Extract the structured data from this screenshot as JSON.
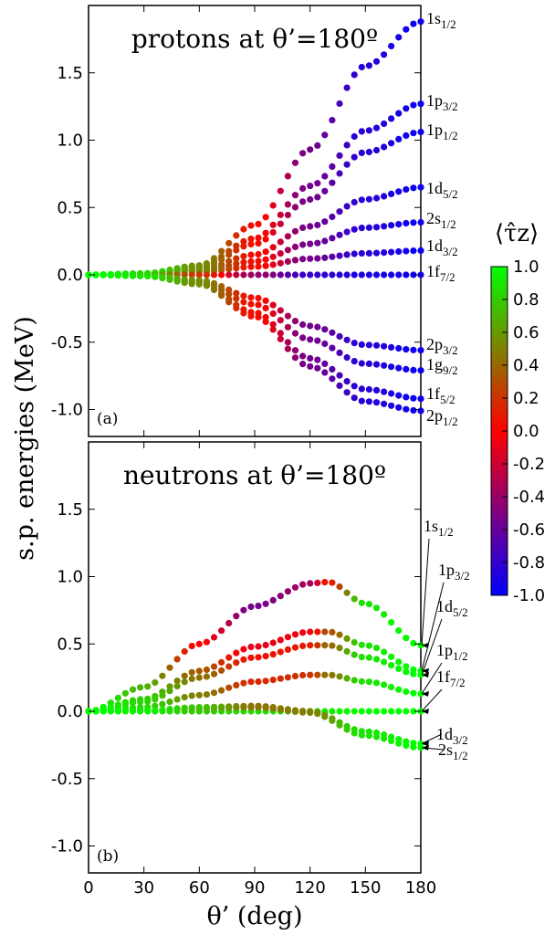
{
  "chart_data": [
    {
      "type": "scatter",
      "panel_label": "(a)",
      "title": "protons at θ’=180º",
      "ylabel": "s.p. energies (MeV)",
      "xlim": [
        0,
        180
      ],
      "ylim": [
        -1.2,
        2.0
      ],
      "yticks": [
        "1.5",
        "1.0",
        "0.5",
        "0.0",
        "-0.5",
        "-1.0"
      ],
      "grid": false,
      "series": [
        {
          "name": "1s1/2",
          "x": [
            0,
            30,
            60,
            90,
            120,
            150,
            180
          ],
          "y": [
            0,
            0.01,
            0.07,
            0.37,
            0.93,
            1.55,
            1.88
          ],
          "tau_z": [
            1.0,
            0.9,
            0.55,
            0.05,
            -0.55,
            -0.85,
            -0.95
          ]
        },
        {
          "name": "1p3/2",
          "x": [
            0,
            30,
            60,
            90,
            120,
            150,
            180
          ],
          "y": [
            0,
            0.01,
            0.06,
            0.27,
            0.66,
            1.07,
            1.27
          ],
          "tau_z": [
            1.0,
            0.9,
            0.55,
            0.05,
            -0.55,
            -0.85,
            -0.95
          ]
        },
        {
          "name": "1p1/2",
          "x": [
            0,
            30,
            60,
            90,
            120,
            150,
            180
          ],
          "y": [
            0,
            0.01,
            0.05,
            0.23,
            0.56,
            0.91,
            1.06
          ],
          "tau_z": [
            1.0,
            0.9,
            0.55,
            0.05,
            -0.55,
            -0.85,
            -0.95
          ]
        },
        {
          "name": "1d5/2",
          "x": [
            0,
            30,
            60,
            90,
            120,
            150,
            180
          ],
          "y": [
            0,
            0.01,
            0.04,
            0.15,
            0.36,
            0.56,
            0.65
          ],
          "tau_z": [
            1.0,
            0.9,
            0.55,
            0.05,
            -0.55,
            -0.85,
            -0.95
          ]
        },
        {
          "name": "2s1/2",
          "x": [
            0,
            30,
            60,
            90,
            120,
            150,
            180
          ],
          "y": [
            0,
            0.005,
            0.03,
            0.1,
            0.23,
            0.35,
            0.39
          ],
          "tau_z": [
            1.0,
            0.9,
            0.55,
            0.05,
            -0.55,
            -0.85,
            -0.95
          ]
        },
        {
          "name": "1d3/2",
          "x": [
            0,
            30,
            60,
            90,
            120,
            150,
            180
          ],
          "y": [
            0,
            0.004,
            0.02,
            0.06,
            0.12,
            0.16,
            0.18
          ],
          "tau_z": [
            1.0,
            0.9,
            0.55,
            0.05,
            -0.55,
            -0.85,
            -0.95
          ]
        },
        {
          "name": "1f7/2",
          "x": [
            0,
            30,
            60,
            90,
            120,
            150,
            180
          ],
          "y": [
            0,
            0,
            0,
            0,
            0,
            0,
            0
          ],
          "tau_z": [
            1.0,
            0.7,
            0.2,
            -0.4,
            -0.8,
            -0.9,
            -0.95
          ]
        },
        {
          "name": "2p3/2",
          "x": [
            0,
            30,
            60,
            90,
            120,
            150,
            180
          ],
          "y": [
            0,
            -0.005,
            -0.04,
            -0.17,
            -0.38,
            -0.52,
            -0.56
          ],
          "tau_z": [
            1.0,
            0.9,
            0.55,
            0.05,
            -0.55,
            -0.85,
            -0.95
          ]
        },
        {
          "name": "1g9/2",
          "x": [
            0,
            30,
            60,
            90,
            120,
            150,
            180
          ],
          "y": [
            0,
            -0.006,
            -0.05,
            -0.22,
            -0.48,
            -0.66,
            -0.71
          ],
          "tau_z": [
            1.0,
            0.9,
            0.55,
            0.05,
            -0.55,
            -0.85,
            -0.95
          ]
        },
        {
          "name": "1f5/2",
          "x": [
            0,
            30,
            60,
            90,
            120,
            150,
            180
          ],
          "y": [
            0,
            -0.008,
            -0.06,
            -0.28,
            -0.62,
            -0.85,
            -0.92
          ],
          "tau_z": [
            1.0,
            0.9,
            0.55,
            0.05,
            -0.55,
            -0.85,
            -0.95
          ]
        },
        {
          "name": "2p1/2",
          "x": [
            0,
            30,
            60,
            90,
            120,
            150,
            180
          ],
          "y": [
            0,
            -0.009,
            -0.07,
            -0.31,
            -0.68,
            -0.94,
            -1.01
          ],
          "tau_z": [
            1.0,
            0.9,
            0.55,
            0.05,
            -0.55,
            -0.85,
            -0.95
          ]
        }
      ]
    },
    {
      "type": "scatter",
      "panel_label": "(b)",
      "title": "neutrons at θ’=180º",
      "xlabel": "θ’ (deg)",
      "xlim": [
        0,
        180
      ],
      "ylim": [
        -1.2,
        2.0
      ],
      "xticks": [
        "0",
        "30",
        "60",
        "90",
        "120",
        "150",
        "180"
      ],
      "yticks": [
        "1.5",
        "1.0",
        "0.5",
        "0.0",
        "-0.5",
        "-1.0"
      ],
      "grid": false,
      "series": [
        {
          "name": "1s1/2",
          "x": [
            0,
            30,
            60,
            90,
            120,
            130,
            150,
            180
          ],
          "y": [
            0,
            0.18,
            0.5,
            0.78,
            0.95,
            0.96,
            0.8,
            0.49
          ],
          "tau_z": [
            1.0,
            0.7,
            0.0,
            -0.55,
            -0.35,
            0.1,
            0.9,
            1.0
          ]
        },
        {
          "name": "1p3/2",
          "x": [
            0,
            30,
            60,
            90,
            120,
            130,
            150,
            180
          ],
          "y": [
            0,
            0.09,
            0.3,
            0.48,
            0.59,
            0.59,
            0.49,
            0.3
          ],
          "tau_z": [
            1.0,
            0.8,
            0.35,
            -0.1,
            -0.05,
            0.3,
            0.9,
            1.0
          ]
        },
        {
          "name": "1d5/2",
          "x": [
            0,
            30,
            60,
            90,
            120,
            130,
            150,
            180
          ],
          "y": [
            0,
            0.07,
            0.25,
            0.4,
            0.49,
            0.49,
            0.4,
            0.27
          ],
          "tau_z": [
            1.0,
            0.85,
            0.45,
            0.05,
            0.1,
            0.4,
            0.9,
            1.0
          ]
        },
        {
          "name": "1p1/2",
          "x": [
            0,
            30,
            60,
            90,
            120,
            130,
            150,
            180
          ],
          "y": [
            0,
            0.03,
            0.12,
            0.22,
            0.27,
            0.27,
            0.22,
            0.13
          ],
          "tau_z": [
            1.0,
            0.85,
            0.5,
            0.15,
            0.2,
            0.45,
            0.9,
            1.0
          ]
        },
        {
          "name": "1f7/2",
          "x": [
            0,
            30,
            60,
            90,
            120,
            150,
            180
          ],
          "y": [
            0,
            0,
            0,
            0,
            0,
            0,
            0
          ],
          "tau_z": [
            1.0,
            0.9,
            0.8,
            0.85,
            0.9,
            1.0,
            1.0
          ]
        },
        {
          "name": "1d3/2",
          "x": [
            0,
            30,
            60,
            90,
            120,
            150,
            180
          ],
          "y": [
            0,
            0.005,
            0.03,
            0.04,
            0.0,
            -0.15,
            -0.24
          ],
          "tau_z": [
            1.0,
            0.95,
            0.75,
            0.45,
            0.5,
            0.9,
            1.0
          ]
        },
        {
          "name": "2s1/2",
          "x": [
            0,
            30,
            60,
            90,
            120,
            150,
            180
          ],
          "y": [
            0,
            0.005,
            0.02,
            0.03,
            -0.01,
            -0.18,
            -0.27
          ],
          "tau_z": [
            1.0,
            0.95,
            0.75,
            0.45,
            0.5,
            0.9,
            1.0
          ]
        }
      ]
    }
  ],
  "colorbar": {
    "label": "⟨τ̂z⟩",
    "min": -1.0,
    "max": 1.0,
    "ticks": [
      "1.0",
      "0.8",
      "0.6",
      "0.4",
      "0.2",
      "0.0",
      "-0.2",
      "-0.4",
      "-0.6",
      "-0.8",
      "-1.0"
    ],
    "colors": {
      "-1.0": "#0000ff",
      "0.0": "#ff0000",
      "1.0": "#00ff00"
    }
  }
}
